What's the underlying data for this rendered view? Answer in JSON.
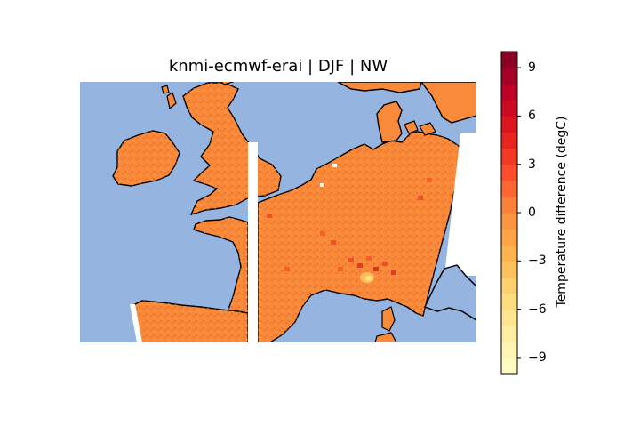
{
  "title": "knmi-ecmwf-erai | DJF | NW",
  "colorbar": {
    "label": "Temperature difference (degC)",
    "range": [
      -10,
      10
    ],
    "ticks": [
      {
        "value": 9,
        "label": "9"
      },
      {
        "value": 6,
        "label": "6"
      },
      {
        "value": 3,
        "label": "3"
      },
      {
        "value": 0,
        "label": "0"
      },
      {
        "value": -3,
        "label": "−3"
      },
      {
        "value": -6,
        "label": "−6"
      },
      {
        "value": -9,
        "label": "−9"
      }
    ],
    "colormap": "YlOrRd",
    "colors": [
      "#ffffcc",
      "#ffeda0",
      "#fed976",
      "#feb24c",
      "#fd8d3c",
      "#fc4e2a",
      "#e31a1c",
      "#bd0026",
      "#800026"
    ]
  },
  "map": {
    "region": "Western Europe (British Isles, France, Benelux, Denmark)",
    "ocean_color": "#96b4e0",
    "field_color": "#f98a3a",
    "missing_color": "#ffffff",
    "dominant_value_range": [
      0,
      3
    ]
  }
}
